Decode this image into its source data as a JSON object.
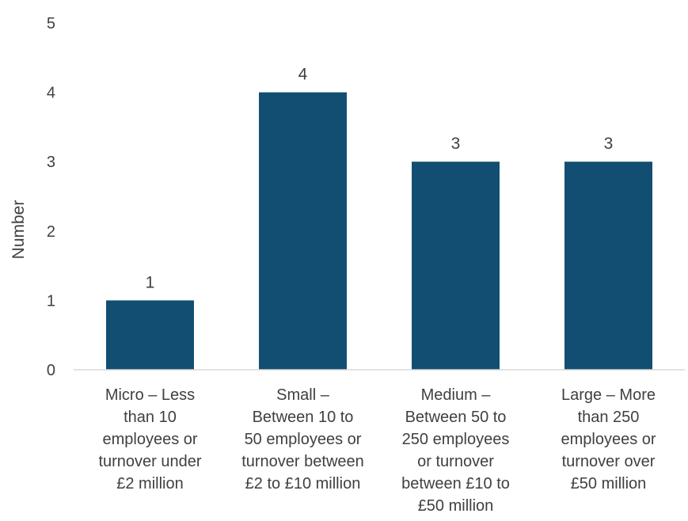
{
  "chart_data": {
    "type": "bar",
    "ylabel": "Number",
    "ylim": [
      0,
      5
    ],
    "yticks": [
      "0",
      "1",
      "2",
      "3",
      "4",
      "5"
    ],
    "bar_color": "#124e71",
    "categories": [
      [
        "Micro – Less",
        "than  10",
        "employees or",
        "turnover under",
        "£2 million"
      ],
      [
        "Small –",
        "Between 10 to",
        "50 employees or",
        "turnover between",
        "£2 to £10 million"
      ],
      [
        "Medium –",
        "Between 50 to",
        "250 employees",
        "or turnover",
        "between £10 to",
        "£50 million"
      ],
      [
        "Large – More",
        "than  250",
        "employees or",
        "turnover over",
        "£50 million"
      ]
    ],
    "values": [
      1,
      4,
      3,
      3
    ],
    "data_labels": [
      "1",
      "4",
      "3",
      "3"
    ]
  }
}
